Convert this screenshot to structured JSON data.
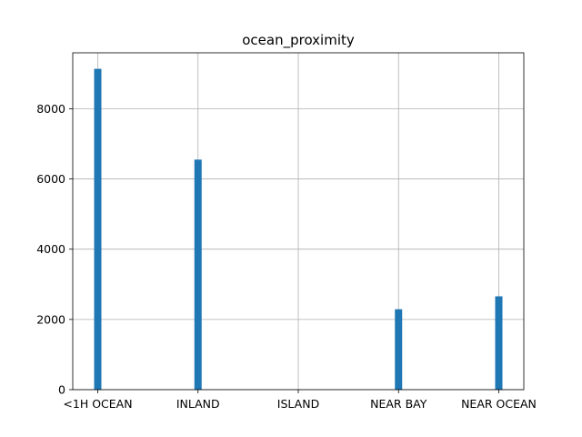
{
  "chart_data": {
    "type": "bar",
    "title": "ocean_proximity",
    "xlabel": "",
    "ylabel": "",
    "categories": [
      "<1H OCEAN",
      "INLAND",
      "ISLAND",
      "NEAR BAY",
      "NEAR OCEAN"
    ],
    "values": [
      9136,
      6551,
      5,
      2290,
      2658
    ],
    "ylim": [
      0,
      9592
    ],
    "yticks": [
      0,
      2000,
      4000,
      6000,
      8000
    ],
    "grid": true,
    "legend": "none",
    "bar_color": "#1f77b4"
  }
}
